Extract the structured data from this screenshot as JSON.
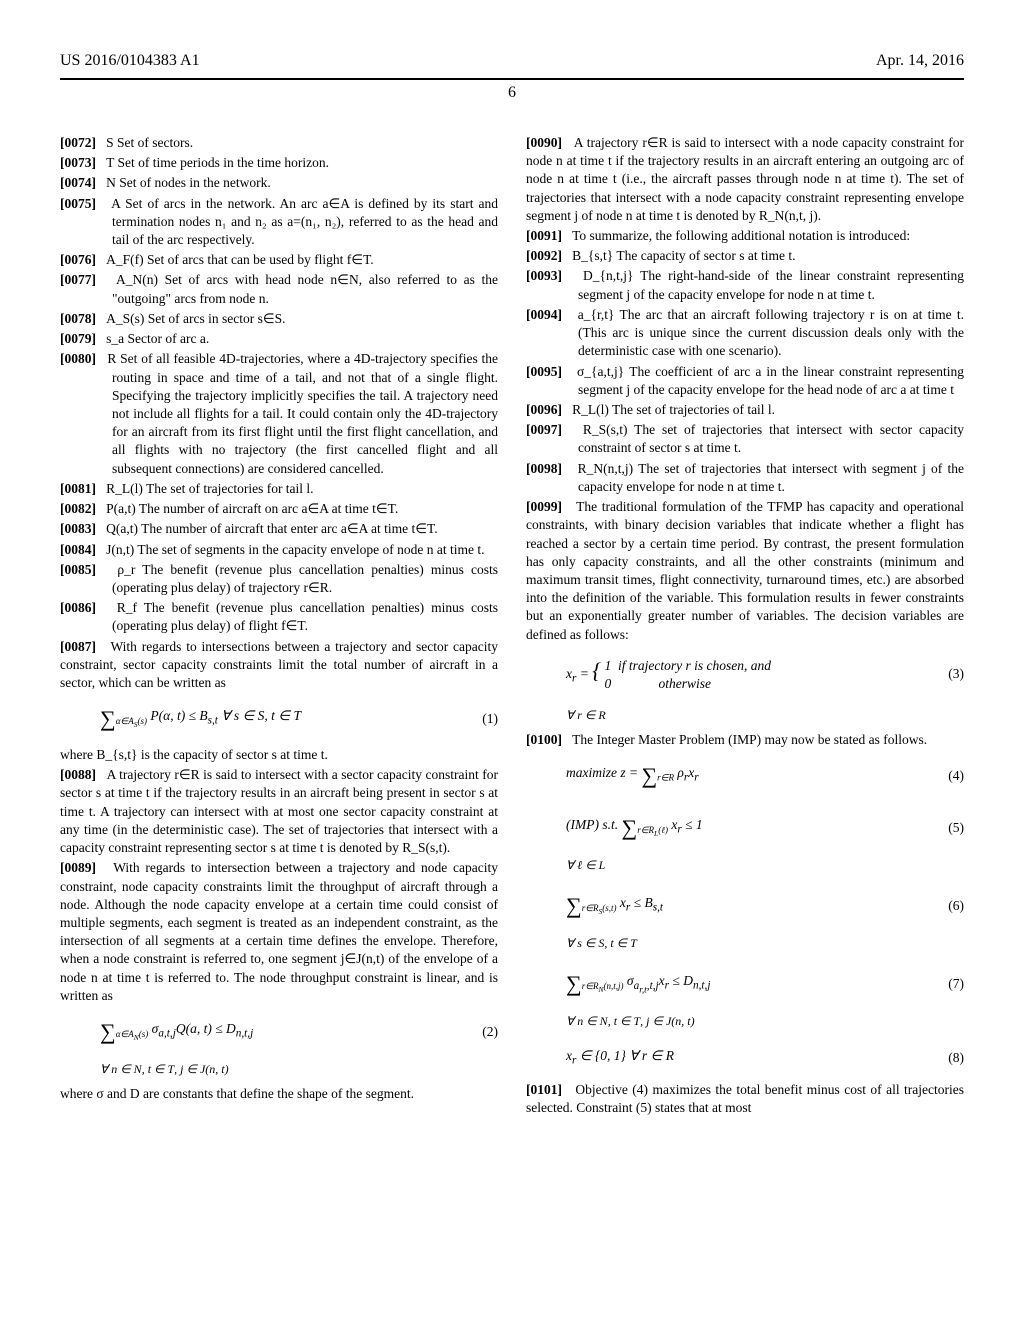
{
  "header": {
    "pubnum": "US 2016/0104383 A1",
    "date": "Apr. 14, 2016",
    "pagenum": "6"
  },
  "paras": {
    "p0072": "S Set of sectors.",
    "p0073": "T Set of time periods in the time horizon.",
    "p0074": "N Set of nodes in the network.",
    "p0075": "A Set of arcs in the network. An arc a∈A is defined by its start and termination nodes n₁ and n₂ as a=(n₁, n₂), referred to as the head and tail of the arc respectively.",
    "p0076": "A_F(f) Set of arcs that can be used by flight f∈T.",
    "p0077": "A_N(n) Set of arcs with head node n∈N, also referred to as the \"outgoing\" arcs from node n.",
    "p0078": "A_S(s) Set of arcs in sector s∈S.",
    "p0079": "s_a Sector of arc a.",
    "p0080": "R Set of all feasible 4D-trajectories, where a 4D-trajectory specifies the routing in space and time of a tail, and not that of a single flight. Specifying the trajectory implicitly specifies the tail. A trajectory need not include all flights for a tail. It could contain only the 4D-trajectory for an aircraft from its first flight until the first flight cancellation, and all flights with no trajectory (the first cancelled flight and all subsequent connections) are considered cancelled.",
    "p0081": "R_L(l) The set of trajectories for tail l.",
    "p0082": "P(a,t) The number of aircraft on arc a∈A at time t∈T.",
    "p0083": "Q(a,t) The number of aircraft that enter arc a∈A at time t∈T.",
    "p0084": "J(n,t) The set of segments in the capacity envelope of node n at time t.",
    "p0085": "ρ_r The benefit (revenue plus cancellation penalties) minus costs (operating plus delay) of trajectory r∈R.",
    "p0086": "R_f The benefit (revenue plus cancellation penalties) minus costs (operating plus delay) of flight f∈T.",
    "p0087": "With regards to intersections between a trajectory and sector capacity constraint, sector capacity constraints limit the total number of aircraft in a sector, which can be written as",
    "p0087b": "where B_{s,t} is the capacity of sector s at time t.",
    "p0088": "A trajectory r∈R is said to intersect with a sector capacity constraint for sector s at time t if the trajectory results in an aircraft being present in sector s at time t. A trajectory can intersect with at most one sector capacity constraint at any time (in the deterministic case). The set of trajectories that intersect with a capacity constraint representing sector s at time t is denoted by R_S(s,t).",
    "p0089": "With regards to intersection between a trajectory and node capacity constraint, node capacity constraints limit the throughput of aircraft through a node. Although the node capacity envelope at a certain time could consist of multiple segments, each segment is treated as an independent constraint, as the intersection of all segments at a certain time defines the envelope. Therefore, when a node constraint is referred to, one segment j∈J(n,t) of the envelope of a node n at time t is referred to. The node throughput constraint is linear, and is written as",
    "p0089b": "where σ and D are constants that define the shape of the segment.",
    "p0090": "A trajectory r∈R is said to intersect with a node capacity constraint for node n at time t if the trajectory results in an aircraft entering an outgoing arc of node n at time t (i.e., the aircraft passes through node n at time t). The set of trajectories that intersect with a node capacity constraint representing envelope segment j of node n at time t is denoted by R_N(n,t, j).",
    "p0091": "To summarize, the following additional notation is introduced:",
    "p0092": "B_{s,t} The capacity of sector s at time t.",
    "p0093": "D_{n,t,j} The right-hand-side of the linear constraint representing segment j of the capacity envelope for node n at time t.",
    "p0094": "a_{r,t} The arc that an aircraft following trajectory r is on at time t. (This arc is unique since the current discussion deals only with the deterministic case with one scenario).",
    "p0095": "σ_{a,t,j} The coefficient of arc a in the linear constraint representing segment j of the capacity envelope for the head node of arc a at time t",
    "p0096": "R_L(l) The set of trajectories of tail l.",
    "p0097": "R_S(s,t) The set of trajectories that intersect with sector capacity constraint of sector s at time t.",
    "p0098": "R_N(n,t,j) The set of trajectories that intersect with segment j of the capacity envelope for node n at time t.",
    "p0099": "The traditional formulation of the TFMP has capacity and operational constraints, with binary decision variables that indicate whether a flight has reached a sector by a certain time period. By contrast, the present formulation has only capacity constraints, and all the other constraints (minimum and maximum transit times, flight connectivity, turnaround times, etc.) are absorbed into the definition of the variable. This formulation results in fewer constraints but an exponentially greater number of variables. The decision variables are defined as follows:",
    "p0100": "The Integer Master Problem (IMP) may now be stated as follows.",
    "p0101": "Objective (4) maximizes the total benefit minus cost of all trajectories selected. Constraint (5) states that at most"
  },
  "eqs": {
    "eq1": "(1)",
    "eq2": "(2)",
    "eq3": "(3)",
    "eq4": "(4)",
    "eq5": "(5)",
    "eq6": "(6)",
    "eq7": "(7)",
    "eq8": "(8)"
  }
}
